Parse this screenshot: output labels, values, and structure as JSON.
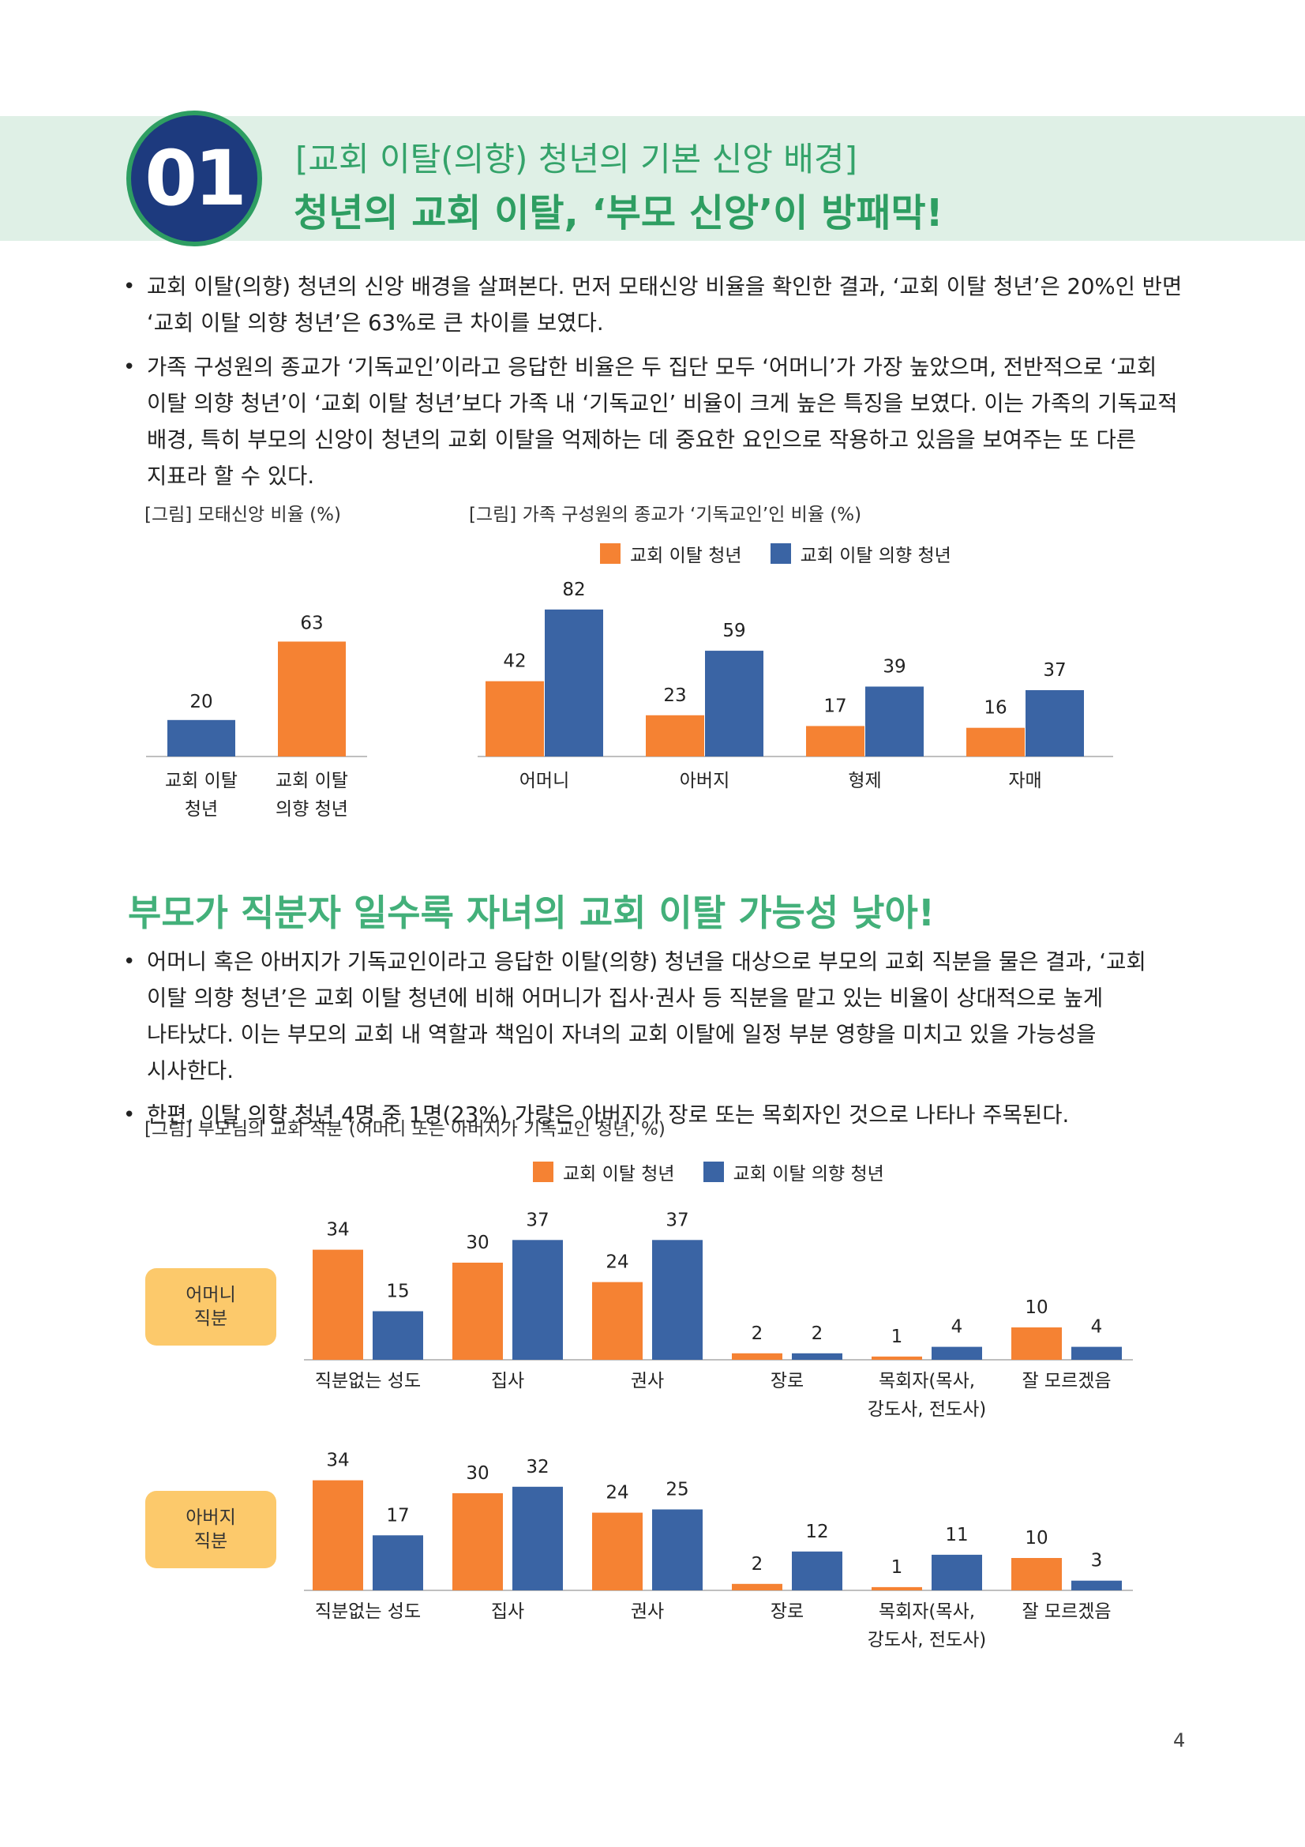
{
  "header": {
    "number": "01",
    "subtitle": "[교회 이탈(의향) 청년의 기본 신앙 배경]",
    "title": "청년의 교회 이탈, ‘부모 신앙’이 방패막!"
  },
  "bullets1": [
    "교회 이탈(의향) 청년의 신앙 배경을 살펴본다. 먼저 모태신앙 비율을 확인한 결과, ‘교회 이탈 청년’은 20%인 반면 ‘교회 이탈 의향 청년’은 63%로 큰 차이를 보였다.",
    "가족 구성원의 종교가 ‘기독교인’이라고 응답한 비율은 두 집단 모두 ‘어머니’가 가장 높았으며, 전반적으로 ‘교회 이탈 의향 청년’이 ‘교회 이탈 청년’보다 가족 내 ‘기독교인’ 비율이 크게 높은 특징을 보였다. 이는 가족의 기독교적 배경, 특히 부모의 신앙이 청년의 교회 이탈을 억제하는 데 중요한 요인으로 작용하고 있음을 보여주는 또 다른 지표라 할 수 있다."
  ],
  "section2": {
    "title": "부모가 직분자 일수록 자녀의 교회 이탈 가능성 낮아!",
    "bullets": [
      "어머니 혹은 아버지가 기독교인이라고 응답한 이탈(의향) 청년을 대상으로 부모의 교회 직분을 물은 결과, ‘교회 이탈 의향 청년’은 교회 이탈 청년에 비해 어머니가 집사·권사 등 직분을 맡고 있는 비율이 상대적으로 높게 나타났다. 이는 부모의 교회 내 역할과 책임이 자녀의 교회 이탈에 일정 부분 영향을 미치고 있을 가능성을 시사한다.",
      "한편, 이탈 의향 청년 4명 중 1명(23%) 가량은 아버지가 장로 또는 목회자인 것으로 나타나 주목된다."
    ]
  },
  "legend": {
    "a": "교회 이탈 청년",
    "b": "교회 이탈 의향 청년"
  },
  "colors": {
    "orange": "#f58233",
    "blue": "#3a64a4",
    "axis": "#bfbfbf"
  },
  "chart_data": [
    {
      "type": "bar",
      "title": "[그림] 모태신앙 비율 (%)",
      "categories": [
        "교회 이탈\n청년",
        "교회 이탈\n의향 청년"
      ],
      "values": [
        20,
        63
      ],
      "bar_colors": [
        "#3a64a4",
        "#f58233"
      ]
    },
    {
      "type": "bar",
      "title": "[그림] 가족 구성원의 종교가 ‘기독교인’인 비율 (%)",
      "categories": [
        "어머니",
        "아버지",
        "형제",
        "자매"
      ],
      "series": [
        {
          "name": "교회 이탈 청년",
          "values": [
            42,
            23,
            17,
            16
          ]
        },
        {
          "name": "교회 이탈 의향 청년",
          "values": [
            82,
            59,
            39,
            37
          ]
        }
      ]
    },
    {
      "type": "bar",
      "title": "[그림] 부모님의 교회 직분 (어머니 또는 아버지가 기독교인 청년, %)",
      "row_label": "어머니\n직분",
      "categories": [
        "직분없는 성도",
        "집사",
        "권사",
        "장로",
        "목회자(목사,\n강도사, 전도사)",
        "잘 모르겠음"
      ],
      "series": [
        {
          "name": "교회 이탈 청년",
          "values": [
            34,
            30,
            24,
            2,
            1,
            10
          ]
        },
        {
          "name": "교회 이탈 의향 청년",
          "values": [
            15,
            37,
            37,
            2,
            4,
            4
          ]
        }
      ]
    },
    {
      "type": "bar",
      "row_label": "아버지\n직분",
      "categories": [
        "직분없는 성도",
        "집사",
        "권사",
        "장로",
        "목회자(목사,\n강도사, 전도사)",
        "잘 모르겠음"
      ],
      "series": [
        {
          "name": "교회 이탈 청년",
          "values": [
            34,
            30,
            24,
            2,
            1,
            10
          ]
        },
        {
          "name": "교회 이탈 의향 청년",
          "values": [
            17,
            32,
            25,
            12,
            11,
            3
          ]
        }
      ]
    }
  ],
  "page_number": "4"
}
